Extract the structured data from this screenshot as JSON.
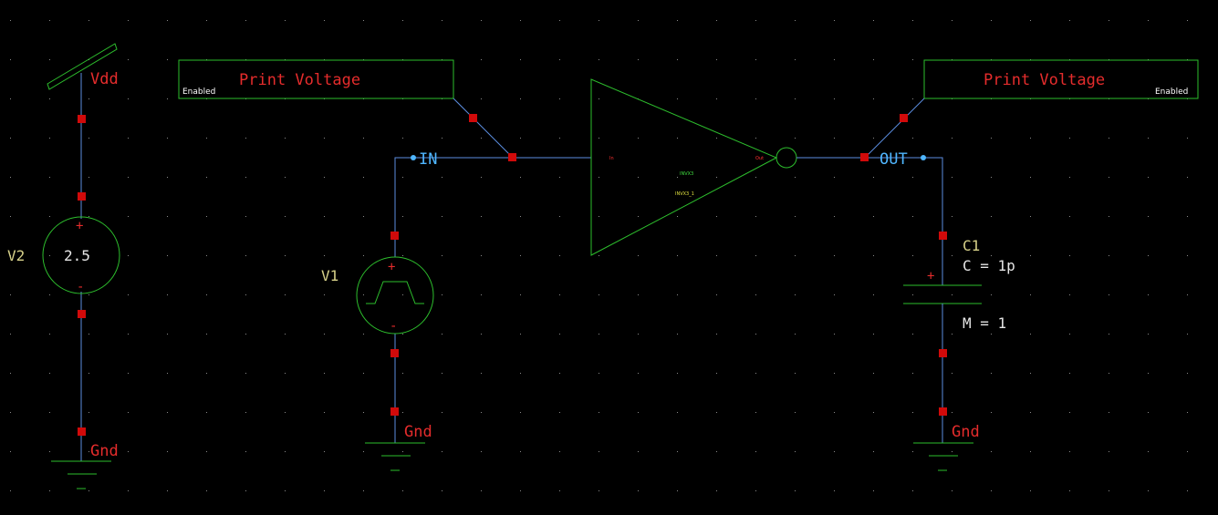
{
  "canvas": {
    "background": "#000000",
    "wire_color": "#5c8ee0",
    "symbol_color": "#2dbe2d",
    "pin_color": "#d10a0a",
    "label_color": "#e52c2c"
  },
  "power": {
    "vdd_label": "Vdd"
  },
  "grounds": {
    "gnd_left": "Gnd",
    "gnd_mid": "Gnd",
    "gnd_right": "Gnd"
  },
  "v2": {
    "name": "V2",
    "value": "2.5",
    "plus": "+",
    "minus": "-"
  },
  "v1": {
    "name": "V1",
    "plus": "+",
    "minus": "-"
  },
  "nets": {
    "in": "IN",
    "out": "OUT"
  },
  "probes": [
    {
      "title": "Print Voltage",
      "status": "Enabled"
    },
    {
      "title": "Print Voltage",
      "status": "Enabled"
    }
  ],
  "inverter": {
    "cell": "INVX3",
    "instance": "INVX3_1",
    "pin_in": "In",
    "pin_out": "Out"
  },
  "c1": {
    "name": "C1",
    "value": "C = 1p",
    "multiplier": "M = 1",
    "plus": "+"
  }
}
